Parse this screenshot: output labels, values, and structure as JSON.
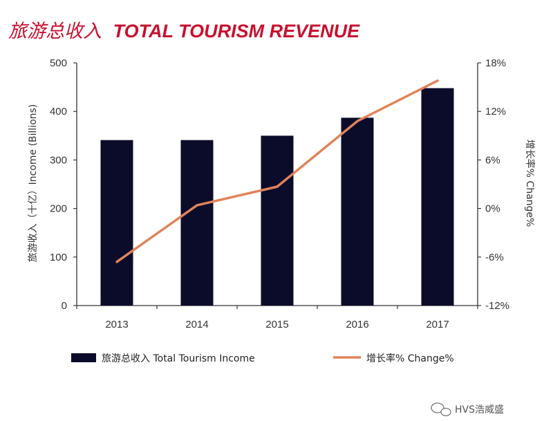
{
  "title": {
    "cn": "旅游总收入",
    "en": "TOTAL TOURISM REVENUE",
    "color": "#c8102e"
  },
  "watermark": "HVS浩威盛",
  "chart_data": {
    "type": "bar",
    "categories": [
      "2013",
      "2014",
      "2015",
      "2016",
      "2017"
    ],
    "series": [
      {
        "name": "旅游总收入 Total Tourism Income",
        "type": "bar",
        "axis": "left",
        "color": "#0b0c2a",
        "values": [
          341,
          341,
          350,
          387,
          448
        ]
      },
      {
        "name": "增长率% Change%",
        "type": "line",
        "axis": "right",
        "color": "#e0835a",
        "values": [
          -6.6,
          0.4,
          2.7,
          10.8,
          15.8
        ]
      }
    ],
    "ylabel": "旅游收入（十亿）Income (Billions)",
    "y2label": "增长率% Change%",
    "ylim": [
      0,
      500
    ],
    "y2lim": [
      -12,
      18
    ],
    "yticks": [
      "0",
      "100",
      "200",
      "300",
      "400",
      "500"
    ],
    "y2ticks": [
      "-12%",
      "-6%",
      "0%",
      "6%",
      "12%",
      "18%"
    ],
    "grid": false,
    "legend_position": "bottom"
  }
}
